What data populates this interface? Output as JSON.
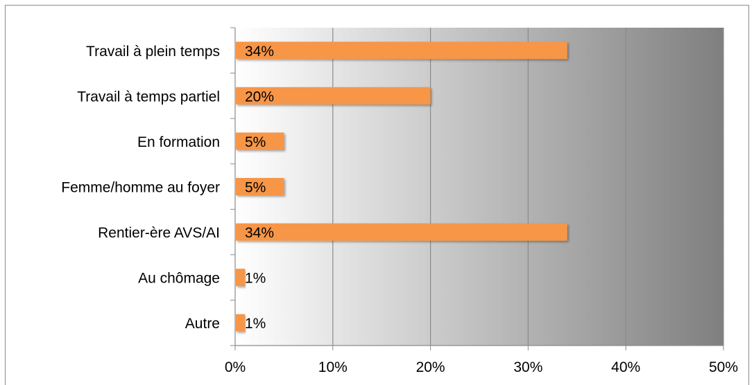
{
  "chart_data": {
    "type": "bar",
    "orientation": "horizontal",
    "categories": [
      "Travail à plein temps",
      "Travail à temps partiel",
      "En formation",
      "Femme/homme au foyer",
      "Rentier-ère AVS/AI",
      "Au chômage",
      "Autre"
    ],
    "values": [
      34,
      20,
      5,
      5,
      34,
      1,
      1
    ],
    "data_labels": [
      "34%",
      "20%",
      "5%",
      "5%",
      "34%",
      "1%",
      "1%"
    ],
    "xlim": [
      0,
      50
    ],
    "x_ticks": [
      0,
      10,
      20,
      30,
      40,
      50
    ],
    "x_tick_labels": [
      "0%",
      "10%",
      "20%",
      "30%",
      "40%",
      "50%"
    ],
    "grid": true,
    "legend": "none",
    "bar_color": "#f79646",
    "plot_gradient": [
      "#ffffff",
      "#7f7f7f"
    ]
  }
}
